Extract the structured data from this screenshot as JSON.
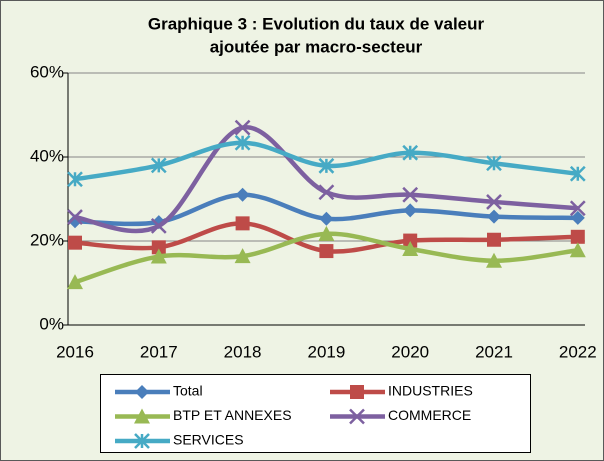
{
  "chart_data": {
    "type": "line",
    "title": [
      "Graphique 3 : Evolution du taux de valeur",
      "ajoutée par macro-secteur"
    ],
    "categories": [
      "2016",
      "2017",
      "2018",
      "2019",
      "2020",
      "2021",
      "2022"
    ],
    "series": [
      {
        "name": "Total",
        "color": "#4a7ebb",
        "marker": "diamond",
        "values": [
          24.7,
          24.5,
          31.0,
          25.3,
          27.3,
          25.8,
          25.5
        ]
      },
      {
        "name": "INDUSTRIES",
        "color": "#be4b48",
        "marker": "square",
        "values": [
          19.6,
          18.5,
          24.2,
          17.6,
          20.1,
          20.3,
          21.0
        ]
      },
      {
        "name": "BTP ET ANNEXES",
        "color": "#98b954",
        "marker": "triangle",
        "values": [
          10.2,
          16.3,
          16.4,
          21.7,
          18.1,
          15.3,
          17.8
        ]
      },
      {
        "name": "COMMERCE",
        "color": "#7d60a0",
        "marker": "x",
        "values": [
          25.7,
          23.6,
          47.0,
          31.6,
          31.0,
          29.3,
          27.8
        ]
      },
      {
        "name": "SERVICES",
        "color": "#46aac5",
        "marker": "star",
        "values": [
          34.7,
          38.0,
          43.4,
          37.9,
          41.0,
          38.5,
          36.0
        ]
      }
    ],
    "ylim": [
      0,
      60
    ],
    "yticks": [
      {
        "value": 0,
        "label": "0%"
      },
      {
        "value": 20,
        "label": "20%"
      },
      {
        "value": 40,
        "label": "40%"
      },
      {
        "value": 60,
        "label": "60%"
      }
    ],
    "grid": true,
    "smooth": true,
    "legend": "bottom"
  }
}
